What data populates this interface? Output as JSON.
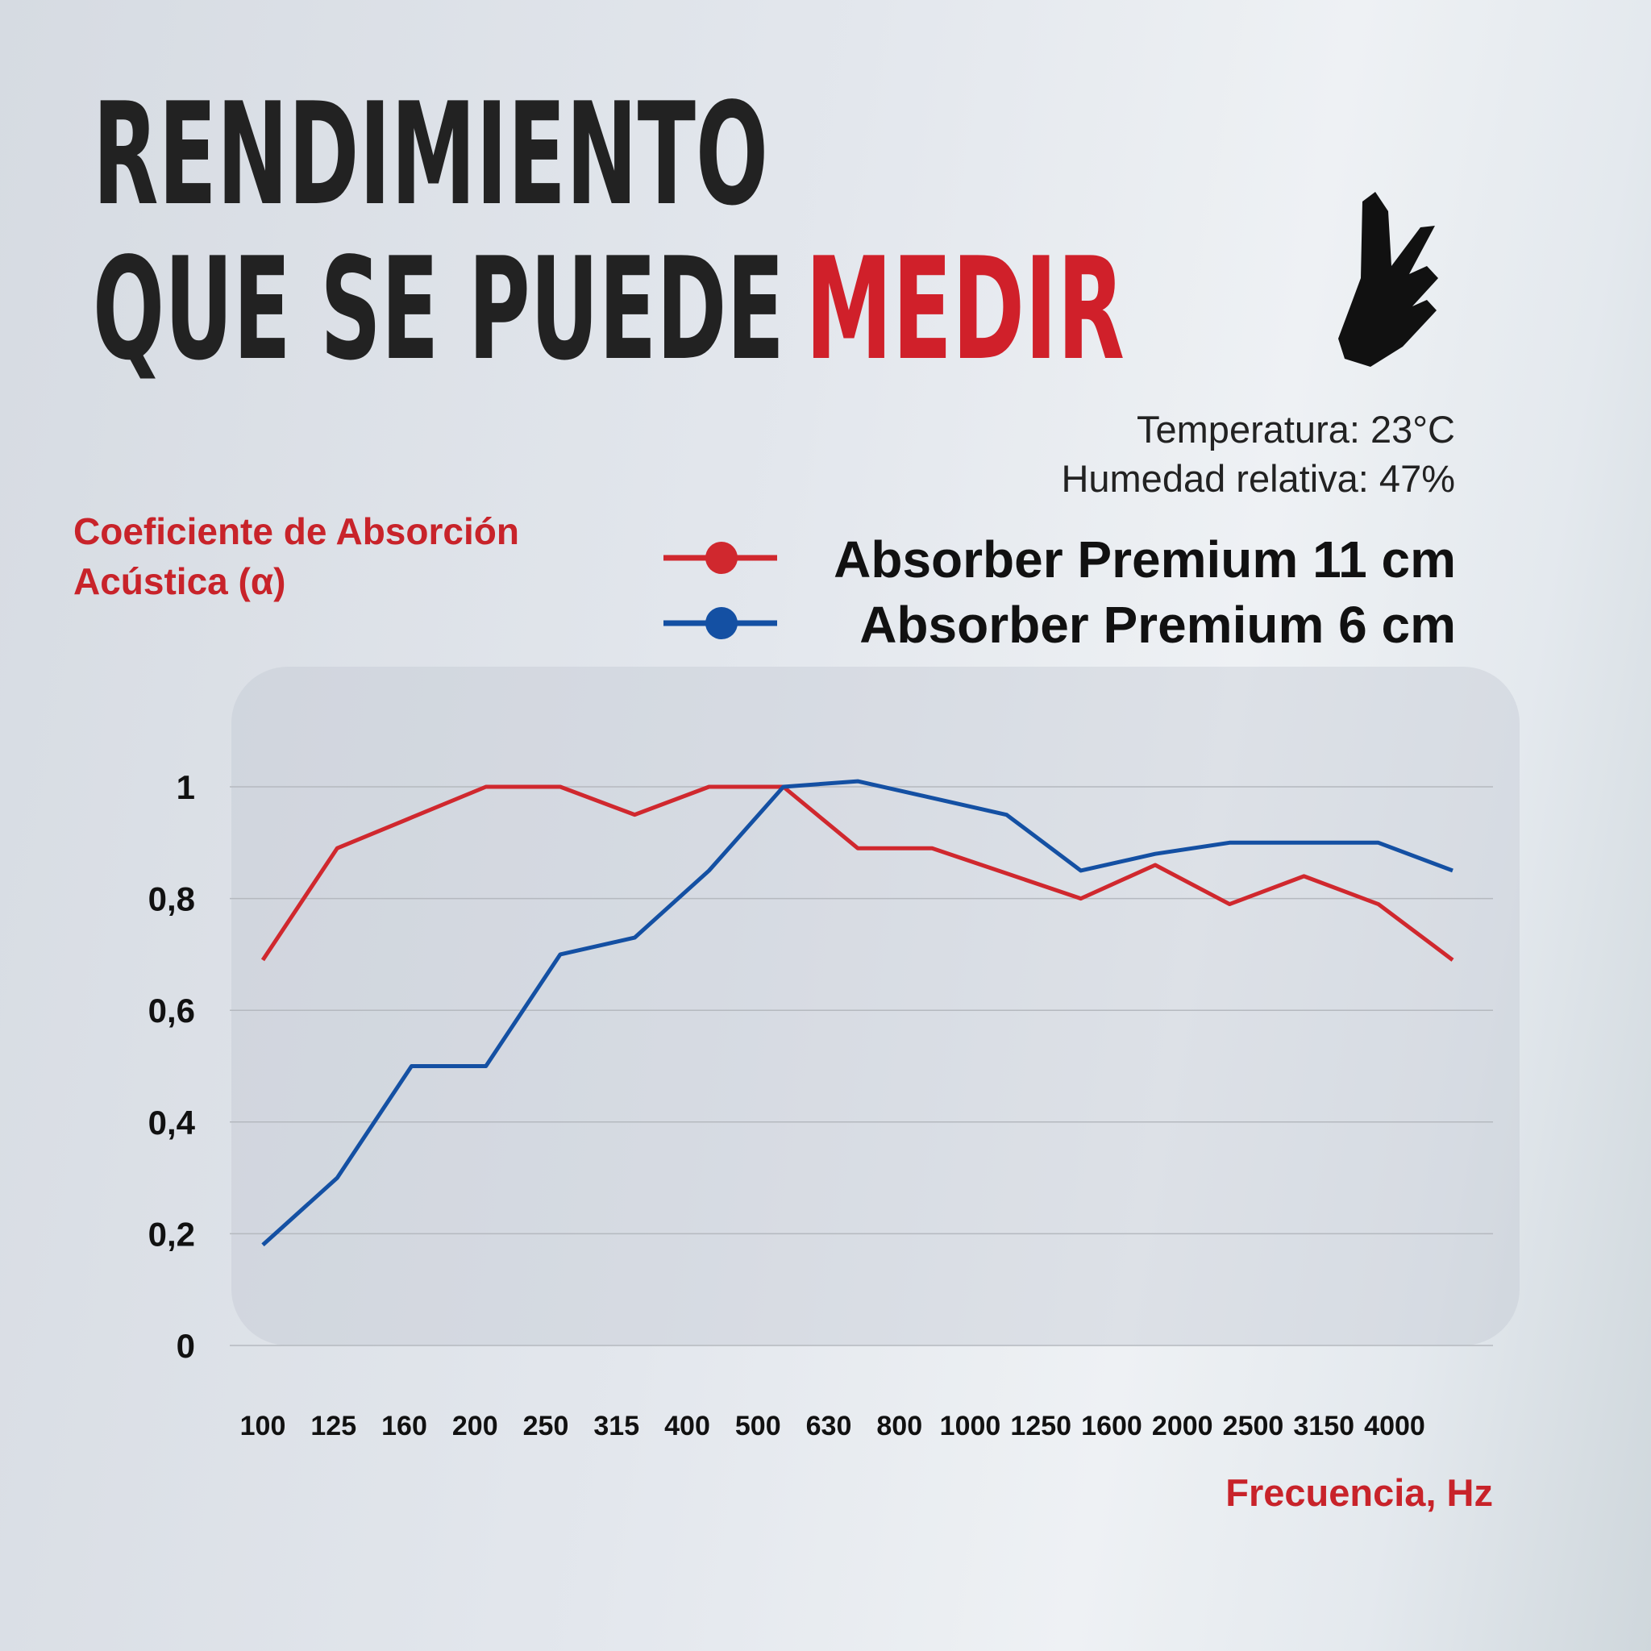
{
  "header": {
    "title_line1": "RENDIMIENTO",
    "title_line2": "QUE SE PUEDE",
    "title_highlight": "MEDIR"
  },
  "conditions": {
    "temperature": "Temperatura: 23°C",
    "humidity": "Humedad relativa: 47%"
  },
  "chart_data": {
    "type": "line",
    "y_label": "Coeficiente de Absorción Acústica (α)",
    "x_label": "Frecuencia, Hz",
    "categories": [
      "100",
      "125",
      "160",
      "200",
      "250",
      "315",
      "400",
      "500",
      "630",
      "800",
      "1000",
      "1250",
      "1600",
      "2000",
      "2500",
      "3150",
      "4000"
    ],
    "series": [
      {
        "name": "Absorber Premium 11 cm",
        "color": "#d0282e",
        "values": [
          0.69,
          0.89,
          0.945,
          1.0,
          1.0,
          0.95,
          1.0,
          1.0,
          0.89,
          0.89,
          0.845,
          0.8,
          0.86,
          0.79,
          0.84,
          0.79,
          0.69
        ]
      },
      {
        "name": "Absorber Premium 6 cm",
        "color": "#1450a3",
        "values": [
          0.18,
          0.3,
          0.5,
          0.5,
          0.7,
          0.73,
          0.85,
          1.0,
          1.01,
          0.98,
          0.95,
          0.85,
          0.88,
          0.9,
          0.9,
          0.9,
          0.85
        ]
      }
    ],
    "ylim": [
      0,
      1.2
    ],
    "yticks": [
      0,
      {
        "value": 0.2,
        "label": "0,2"
      },
      {
        "value": 0.4,
        "label": "0,4"
      },
      {
        "value": 0.6,
        "label": "0,6"
      },
      {
        "value": 0.8,
        "label": "0,8"
      },
      1
    ],
    "grid": true
  }
}
